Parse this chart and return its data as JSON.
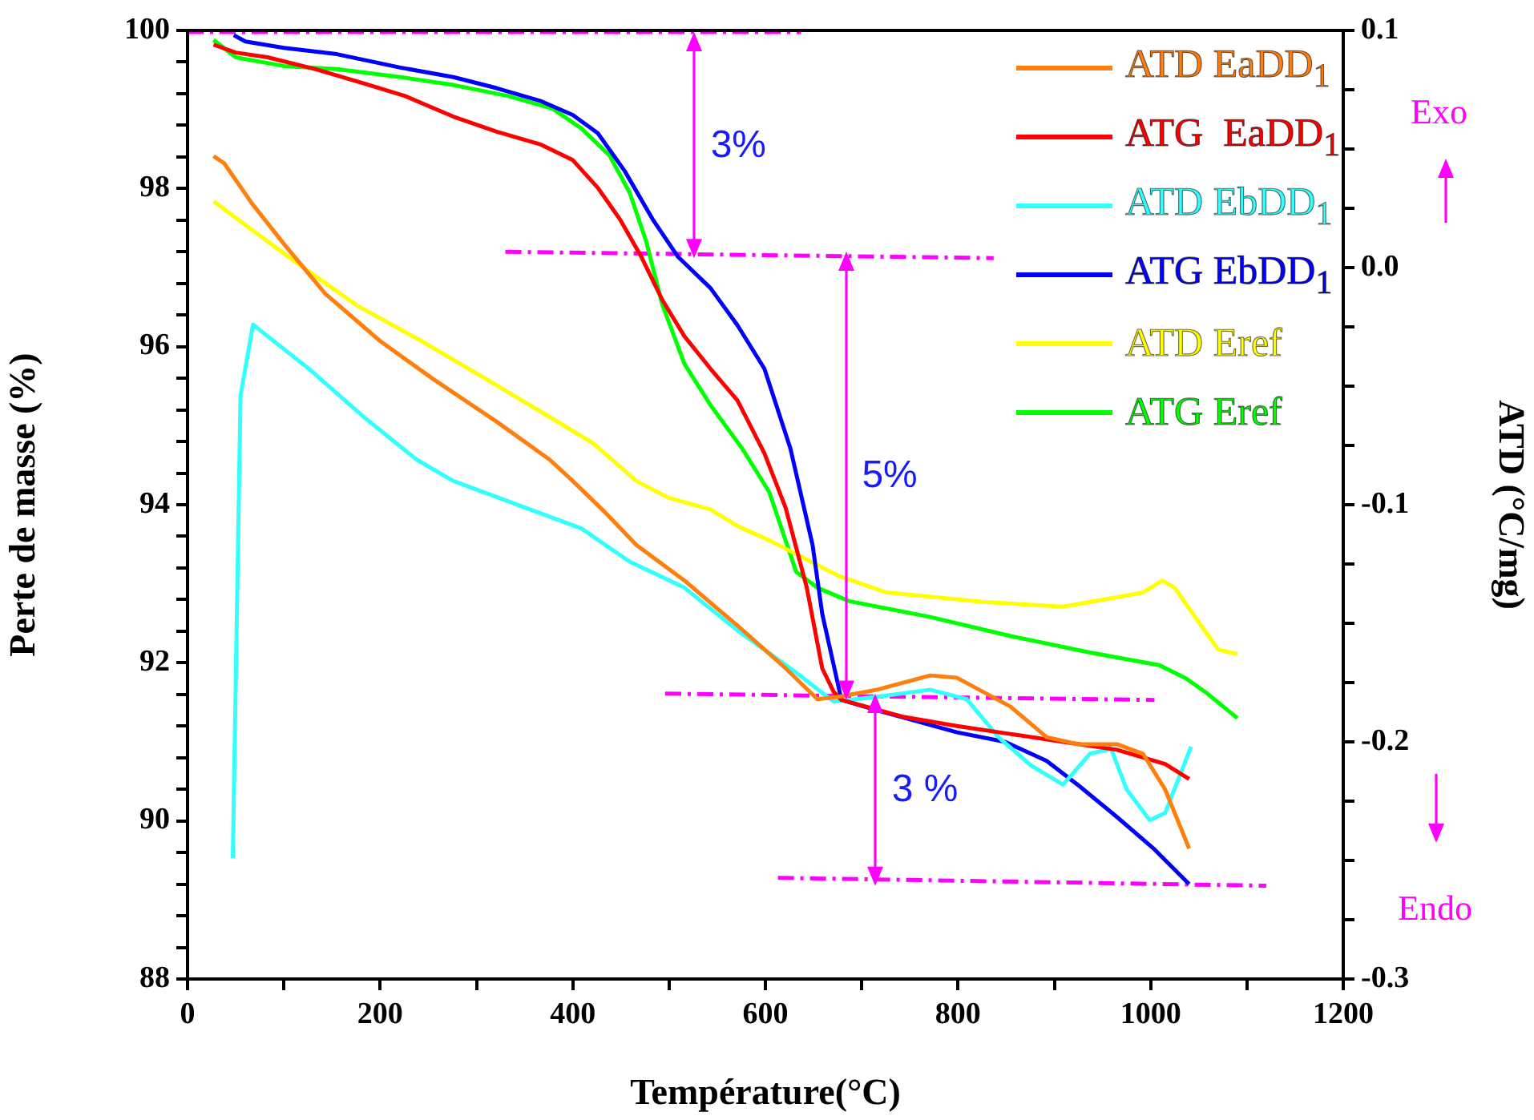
{
  "chart_data": {
    "type": "line",
    "xlabel": "Température(°C)",
    "ylabel": "Perte de masse (%)",
    "y2label": "ATD (°C/mg)",
    "xlim": [
      0,
      1200
    ],
    "xticks": [
      0,
      {
        "value": 100,
        "label": null
      },
      200,
      {
        "value": 300,
        "label": null
      },
      400,
      {
        "value": 500,
        "label": null
      },
      600,
      {
        "value": 700,
        "label": null
      },
      800,
      {
        "value": 900,
        "label": null
      },
      1000,
      {
        "value": 1100,
        "label": null
      },
      1200
    ],
    "ylim": [
      88,
      100
    ],
    "yticks": [
      88,
      {
        "value": 88.4,
        "label": null
      },
      {
        "value": 88.8,
        "label": null
      },
      {
        "value": 89.2,
        "label": null
      },
      {
        "value": 89.6,
        "label": null
      },
      90,
      {
        "value": 90.4,
        "label": null
      },
      {
        "value": 90.8,
        "label": null
      },
      {
        "value": 91.2,
        "label": null
      },
      {
        "value": 91.6,
        "label": null
      },
      92,
      {
        "value": 92.4,
        "label": null
      },
      {
        "value": 92.8,
        "label": null
      },
      {
        "value": 93.2,
        "label": null
      },
      {
        "value": 93.6,
        "label": null
      },
      94,
      {
        "value": 94.4,
        "label": null
      },
      {
        "value": 94.8,
        "label": null
      },
      {
        "value": 95.2,
        "label": null
      },
      {
        "value": 95.6,
        "label": null
      },
      96,
      {
        "value": 96.4,
        "label": null
      },
      {
        "value": 96.8,
        "label": null
      },
      {
        "value": 97.2,
        "label": null
      },
      {
        "value": 97.6,
        "label": null
      },
      98,
      {
        "value": 98.4,
        "label": null
      },
      {
        "value": 98.8,
        "label": null
      },
      {
        "value": 99.2,
        "label": null
      },
      {
        "value": 99.6,
        "label": null
      },
      100
    ],
    "y2lim": [
      -0.3,
      0.1
    ],
    "y2ticks": [
      -0.3,
      {
        "value": -0.275,
        "label": null
      },
      {
        "value": -0.25,
        "label": null
      },
      {
        "value": -0.225,
        "label": null
      },
      -0.2,
      {
        "value": -0.175,
        "label": null
      },
      {
        "value": -0.15,
        "label": null
      },
      {
        "value": -0.125,
        "label": null
      },
      -0.1,
      {
        "value": -0.075,
        "label": null
      },
      {
        "value": -0.05,
        "label": null
      },
      {
        "value": -0.025,
        "label": null
      },
      {
        "value": 0,
        "label": "0.0"
      },
      {
        "value": 0.025,
        "label": null
      },
      {
        "value": 0.05,
        "label": null
      },
      {
        "value": 0.075,
        "label": null
      },
      0.1
    ],
    "grid": false,
    "legend": "top right",
    "marker": "none",
    "series": [
      {
        "name": "ATD EaDD$_{1}$",
        "color": "#ff7f0e",
        "axis": "y2",
        "x": [
          27,
          38,
          67,
          100,
          143,
          200,
          255,
          321,
          376,
          400,
          433,
          466,
          516,
          571,
          621,
          654,
          676,
          716,
          771,
          799,
          854,
          892,
          925,
          965,
          992,
          1015,
          1040
        ],
        "values": [
          0.047,
          0.044,
          0.027,
          0.01,
          -0.011,
          -0.031,
          -0.047,
          -0.065,
          -0.081,
          -0.09,
          -0.103,
          -0.117,
          -0.132,
          -0.151,
          -0.169,
          -0.182,
          -0.181,
          -0.178,
          -0.172,
          -0.173,
          -0.185,
          -0.198,
          -0.201,
          -0.201,
          -0.205,
          -0.22,
          -0.245
        ]
      },
      {
        "name": "ATG  EaDD$_{1}$",
        "color": "#ff0000",
        "x": [
          27,
          50,
          83,
          133,
          183,
          226,
          276,
          321,
          366,
          400,
          426,
          449,
          471,
          493,
          516,
          543,
          571,
          599,
          621,
          643,
          659,
          671,
          679,
          742,
          799,
          854,
          909,
          965,
          1015,
          1040
        ],
        "values": [
          99.82,
          99.72,
          99.66,
          99.51,
          99.33,
          99.17,
          98.91,
          98.72,
          98.56,
          98.36,
          98.01,
          97.61,
          97.14,
          96.59,
          96.13,
          95.72,
          95.32,
          94.65,
          93.96,
          92.95,
          91.93,
          91.63,
          91.53,
          91.32,
          91.2,
          91.1,
          91.0,
          90.9,
          90.72,
          90.53
        ]
      },
      {
        "name": "ATD EbDD$_{1}$",
        "color": "#33ffff",
        "axis": "y2",
        "x": [
          47,
          55,
          68,
          77,
          127,
          183,
          238,
          276,
          349,
          409,
          459,
          516,
          571,
          626,
          671,
          716,
          771,
          809,
          842,
          876,
          909,
          937,
          959,
          975,
          999,
          1015,
          1042
        ],
        "values": [
          -0.249,
          -0.054,
          -0.024,
          -0.027,
          -0.043,
          -0.063,
          -0.081,
          -0.09,
          -0.101,
          -0.11,
          -0.124,
          -0.135,
          -0.153,
          -0.169,
          -0.183,
          -0.181,
          -0.178,
          -0.182,
          -0.198,
          -0.21,
          -0.218,
          -0.205,
          -0.203,
          -0.22,
          -0.233,
          -0.23,
          -0.202
        ]
      },
      {
        "name": "ATG EbDD$_{1}$",
        "color": "#0000ff",
        "x": [
          48,
          60,
          100,
          155,
          221,
          276,
          321,
          366,
          400,
          426,
          454,
          483,
          509,
          543,
          571,
          599,
          626,
          649,
          659,
          679,
          716,
          799,
          849,
          892,
          925,
          965,
          1004,
          1040
        ],
        "values": [
          99.94,
          99.86,
          99.78,
          99.7,
          99.53,
          99.41,
          99.27,
          99.11,
          98.93,
          98.7,
          98.22,
          97.61,
          97.14,
          96.74,
          96.27,
          95.72,
          94.71,
          93.49,
          92.62,
          91.53,
          91.4,
          91.12,
          91.0,
          90.76,
          90.45,
          90.05,
          89.64,
          89.2
        ]
      },
      {
        "name": "ATD Eref",
        "color": "#ffff00",
        "axis": "y2",
        "x": [
          27,
          60,
          110,
          176,
          243,
          310,
          376,
          421,
          466,
          499,
          543,
          571,
          604,
          676,
          726,
          826,
          909,
          965,
          992,
          1012,
          1025,
          1049,
          1070,
          1090
        ],
        "values": [
          0.028,
          0.018,
          0.003,
          -0.016,
          -0.031,
          -0.047,
          -0.063,
          -0.074,
          -0.09,
          -0.097,
          -0.102,
          -0.109,
          -0.115,
          -0.13,
          -0.137,
          -0.141,
          -0.143,
          -0.139,
          -0.137,
          -0.132,
          -0.135,
          -0.149,
          -0.161,
          -0.163
        ]
      },
      {
        "name": "ATG Eref",
        "color": "#00ff00",
        "x": [
          27,
          50,
          100,
          155,
          221,
          276,
          333,
          379,
          409,
          438,
          459,
          476,
          493,
          516,
          543,
          576,
          604,
          632,
          654,
          687,
          771,
          854,
          937,
          1009,
          1037,
          1059,
          1090
        ],
        "values": [
          99.88,
          99.66,
          99.55,
          99.51,
          99.41,
          99.31,
          99.17,
          99.01,
          98.76,
          98.42,
          97.95,
          97.34,
          96.53,
          95.78,
          95.26,
          94.71,
          94.16,
          93.15,
          92.95,
          92.78,
          92.58,
          92.34,
          92.13,
          91.97,
          91.8,
          91.61,
          91.3
        ]
      },
      {
        "color": "#ff00ff",
        "line_style": "dashed",
        "x": [
          0,
          637
        ],
        "values": [
          99.98,
          99.98
        ]
      },
      {
        "color": "#ff00ff",
        "line_style": "dashed",
        "x": [
          330,
          837
        ],
        "values": [
          97.2,
          97.12
        ]
      },
      {
        "color": "#ff00ff",
        "line_style": "dashed",
        "x": [
          496,
          1004
        ],
        "values": [
          91.61,
          91.53
        ]
      },
      {
        "color": "#ff00ff",
        "line_style": "dashed",
        "x": [
          613,
          1120
        ],
        "values": [
          89.28,
          89.18
        ]
      }
    ],
    "annotations": [
      "3%",
      "5%",
      "3 %",
      "Exo",
      "Endo"
    ]
  }
}
